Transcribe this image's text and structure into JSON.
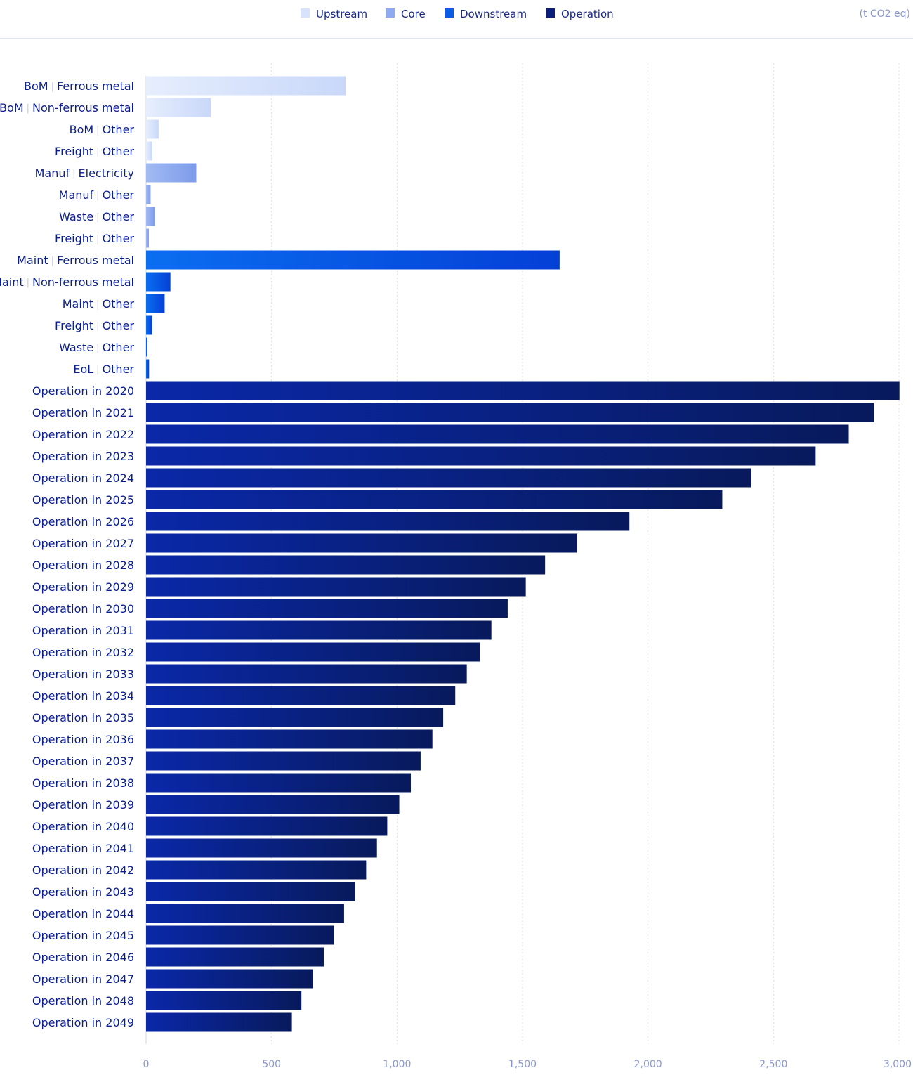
{
  "chart_data": {
    "type": "bar",
    "orientation": "horizontal",
    "unit_label": "(t CO2 eq)",
    "xlim": [
      0,
      3000
    ],
    "x_ticks": [
      0,
      500,
      1000,
      1500,
      2000,
      2500,
      3000
    ],
    "x_tick_labels": [
      "0",
      "500",
      "1,000",
      "1,500",
      "2,000",
      "2,500",
      "3,000"
    ],
    "grid": "vertical dashed",
    "legend": {
      "placement": "top",
      "items": [
        {
          "name": "Upstream",
          "color": "#d7e2fb"
        },
        {
          "name": "Core",
          "color": "#8eaaf0"
        },
        {
          "name": "Downstream",
          "color": "#0a5be6"
        },
        {
          "name": "Operation",
          "color": "#0a1f7a"
        }
      ]
    },
    "colors": {
      "Upstream": [
        "#e6eefd",
        "#c9d8fa"
      ],
      "Core": [
        "#a2bbf3",
        "#7d9beb"
      ],
      "Downstream": [
        "#0a6ef0",
        "#0440d6"
      ],
      "Operation": [
        "#0a28a8",
        "#081a5c"
      ]
    },
    "bars": [
      {
        "category": "Upstream",
        "label": [
          "BoM",
          "Ferrous metal"
        ],
        "value": 795
      },
      {
        "category": "Upstream",
        "label": [
          "BoM",
          "Non-ferrous metal"
        ],
        "value": 258
      },
      {
        "category": "Upstream",
        "label": [
          "BoM",
          "Other"
        ],
        "value": 50
      },
      {
        "category": "Upstream",
        "label": [
          "Freight",
          "Other"
        ],
        "value": 24
      },
      {
        "category": "Core",
        "label": [
          "Manuf",
          "Electricity"
        ],
        "value": 200
      },
      {
        "category": "Core",
        "label": [
          "Manuf",
          "Other"
        ],
        "value": 18
      },
      {
        "category": "Core",
        "label": [
          "Waste",
          "Other"
        ],
        "value": 35
      },
      {
        "category": "Core",
        "label": [
          "Freight",
          "Other"
        ],
        "value": 11
      },
      {
        "category": "Downstream",
        "label": [
          "Maint",
          "Ferrous metal"
        ],
        "value": 1648
      },
      {
        "category": "Downstream",
        "label": [
          "Maint",
          "Non-ferrous metal"
        ],
        "value": 97
      },
      {
        "category": "Downstream",
        "label": [
          "Maint",
          "Other"
        ],
        "value": 74
      },
      {
        "category": "Downstream",
        "label": [
          "Freight",
          "Other"
        ],
        "value": 24
      },
      {
        "category": "Downstream",
        "label": [
          "Waste",
          "Other"
        ],
        "value": 5
      },
      {
        "category": "Downstream",
        "label": [
          "EoL",
          "Other"
        ],
        "value": 12
      },
      {
        "category": "Operation",
        "label": [
          "Operation in 2020"
        ],
        "value": 3002
      },
      {
        "category": "Operation",
        "label": [
          "Operation in 2021"
        ],
        "value": 2900
      },
      {
        "category": "Operation",
        "label": [
          "Operation in 2022"
        ],
        "value": 2800
      },
      {
        "category": "Operation",
        "label": [
          "Operation in 2023"
        ],
        "value": 2668
      },
      {
        "category": "Operation",
        "label": [
          "Operation in 2024"
        ],
        "value": 2410
      },
      {
        "category": "Operation",
        "label": [
          "Operation in 2025"
        ],
        "value": 2296
      },
      {
        "category": "Operation",
        "label": [
          "Operation in 2026"
        ],
        "value": 1926
      },
      {
        "category": "Operation",
        "label": [
          "Operation in 2027"
        ],
        "value": 1718
      },
      {
        "category": "Operation",
        "label": [
          "Operation in 2028"
        ],
        "value": 1590
      },
      {
        "category": "Operation",
        "label": [
          "Operation in 2029"
        ],
        "value": 1513
      },
      {
        "category": "Operation",
        "label": [
          "Operation in 2030"
        ],
        "value": 1441
      },
      {
        "category": "Operation",
        "label": [
          "Operation in 2031"
        ],
        "value": 1376
      },
      {
        "category": "Operation",
        "label": [
          "Operation in 2032"
        ],
        "value": 1330
      },
      {
        "category": "Operation",
        "label": [
          "Operation in 2033"
        ],
        "value": 1278
      },
      {
        "category": "Operation",
        "label": [
          "Operation in 2034"
        ],
        "value": 1232
      },
      {
        "category": "Operation",
        "label": [
          "Operation in 2035"
        ],
        "value": 1184
      },
      {
        "category": "Operation",
        "label": [
          "Operation in 2036"
        ],
        "value": 1141
      },
      {
        "category": "Operation",
        "label": [
          "Operation in 2037"
        ],
        "value": 1094
      },
      {
        "category": "Operation",
        "label": [
          "Operation in 2038"
        ],
        "value": 1055
      },
      {
        "category": "Operation",
        "label": [
          "Operation in 2039"
        ],
        "value": 1009
      },
      {
        "category": "Operation",
        "label": [
          "Operation in 2040"
        ],
        "value": 961
      },
      {
        "category": "Operation",
        "label": [
          "Operation in 2041"
        ],
        "value": 920
      },
      {
        "category": "Operation",
        "label": [
          "Operation in 2042"
        ],
        "value": 877
      },
      {
        "category": "Operation",
        "label": [
          "Operation in 2043"
        ],
        "value": 833
      },
      {
        "category": "Operation",
        "label": [
          "Operation in 2044"
        ],
        "value": 789
      },
      {
        "category": "Operation",
        "label": [
          "Operation in 2045"
        ],
        "value": 750
      },
      {
        "category": "Operation",
        "label": [
          "Operation in 2046"
        ],
        "value": 708
      },
      {
        "category": "Operation",
        "label": [
          "Operation in 2047"
        ],
        "value": 664
      },
      {
        "category": "Operation",
        "label": [
          "Operation in 2048"
        ],
        "value": 619
      },
      {
        "category": "Operation",
        "label": [
          "Operation in 2049"
        ],
        "value": 581
      }
    ]
  }
}
